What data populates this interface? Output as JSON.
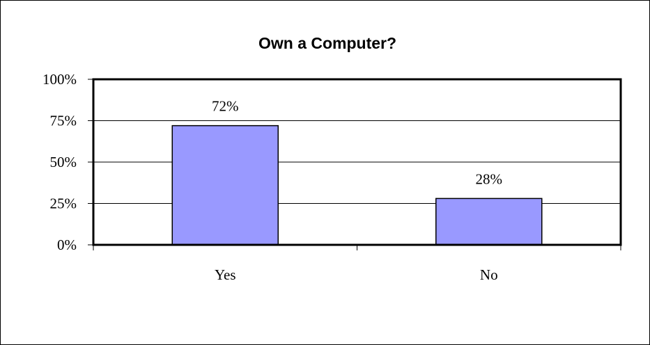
{
  "chart_data": {
    "type": "bar",
    "title": "Own a Computer?",
    "xlabel": "",
    "ylabel": "",
    "categories": [
      "Yes",
      "No"
    ],
    "values": [
      72,
      28
    ],
    "data_labels": [
      "72%",
      "28%"
    ],
    "ylim": [
      0,
      100
    ],
    "yticks": [
      0,
      25,
      50,
      75,
      100
    ],
    "ytick_labels": [
      "0%",
      "25%",
      "50%",
      "75%",
      "100%"
    ],
    "grid": true,
    "legend": "none",
    "colors": {
      "bar_fill": "#9999FF",
      "bar_stroke": "#000000",
      "axis": "#000000",
      "grid": "#000000",
      "background": "#FFFFFF"
    }
  }
}
